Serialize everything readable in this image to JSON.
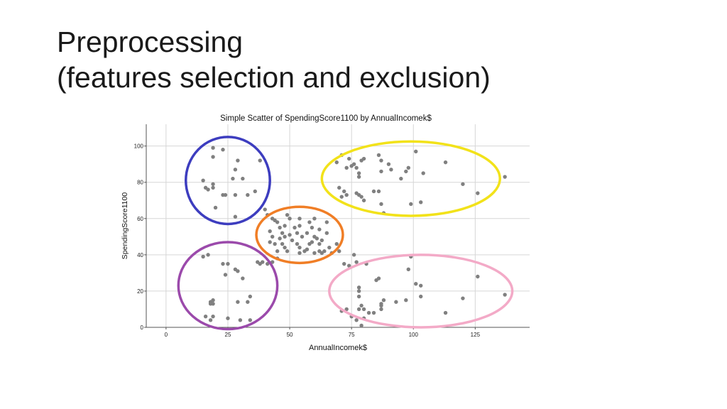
{
  "slide": {
    "title_line1": "Preprocessing",
    "title_line2": "(features selection and exclusion)"
  },
  "chart_data": {
    "type": "scatter",
    "title": "Simple Scatter of SpendingScore1100 by AnnualIncomek$",
    "xlabel": "AnnualIncomek$",
    "ylabel": "SpendingScore1100",
    "xlim": [
      -8,
      147
    ],
    "ylim": [
      0,
      112
    ],
    "xticks": [
      0,
      25,
      50,
      75,
      100,
      125
    ],
    "yticks": [
      0,
      20,
      40,
      60,
      80,
      100
    ],
    "grid": true,
    "point_color": "#808080",
    "series": [
      {
        "points": [
          [
            19,
            99
          ],
          [
            23,
            98
          ],
          [
            19,
            94
          ],
          [
            29,
            92
          ],
          [
            15,
            81
          ],
          [
            19,
            79
          ],
          [
            16,
            77
          ],
          [
            19,
            77
          ],
          [
            17,
            76
          ],
          [
            23,
            73
          ],
          [
            24,
            73
          ],
          [
            28,
            73
          ],
          [
            33,
            73
          ],
          [
            36,
            75
          ],
          [
            20,
            66
          ],
          [
            28,
            87
          ],
          [
            27,
            82
          ],
          [
            31,
            82
          ],
          [
            38,
            92
          ],
          [
            28,
            61
          ],
          [
            15,
            39
          ],
          [
            17,
            40
          ],
          [
            23,
            35
          ],
          [
            25,
            35
          ],
          [
            24,
            29
          ],
          [
            28,
            32
          ],
          [
            29,
            31
          ],
          [
            31,
            27
          ],
          [
            38,
            35
          ],
          [
            37,
            36
          ],
          [
            34,
            17
          ],
          [
            33,
            14
          ],
          [
            29,
            14
          ],
          [
            19,
            15
          ],
          [
            18,
            14
          ],
          [
            19,
            13
          ],
          [
            18,
            13
          ],
          [
            19,
            6
          ],
          [
            16,
            6
          ],
          [
            18,
            4
          ],
          [
            25,
            5
          ],
          [
            30,
            4
          ],
          [
            34,
            4
          ],
          [
            40,
            65
          ],
          [
            41,
            62
          ],
          [
            43,
            60
          ],
          [
            44,
            59
          ],
          [
            45,
            58
          ],
          [
            46,
            55
          ],
          [
            47,
            52
          ],
          [
            48,
            50
          ],
          [
            42,
            53
          ],
          [
            43,
            50
          ],
          [
            42,
            47
          ],
          [
            44,
            46
          ],
          [
            46,
            49
          ],
          [
            47,
            46
          ],
          [
            48,
            44
          ],
          [
            45,
            42
          ],
          [
            49,
            42
          ],
          [
            50,
            51
          ],
          [
            51,
            48
          ],
          [
            52,
            55
          ],
          [
            53,
            52
          ],
          [
            54,
            60
          ],
          [
            54,
            56
          ],
          [
            53,
            46
          ],
          [
            54,
            44
          ],
          [
            54,
            41
          ],
          [
            55,
            50
          ],
          [
            57,
            52
          ],
          [
            58,
            58
          ],
          [
            59,
            55
          ],
          [
            60,
            60
          ],
          [
            60,
            50
          ],
          [
            61,
            49
          ],
          [
            62,
            46
          ],
          [
            62,
            42
          ],
          [
            63,
            41
          ],
          [
            60,
            41
          ],
          [
            63,
            48
          ],
          [
            64,
            42
          ],
          [
            65,
            58
          ],
          [
            65,
            52
          ],
          [
            66,
            44
          ],
          [
            67,
            41
          ],
          [
            69,
            46
          ],
          [
            70,
            42
          ],
          [
            58,
            46
          ],
          [
            57,
            43
          ],
          [
            48,
            56
          ],
          [
            50,
            60
          ],
          [
            49,
            62
          ],
          [
            39,
            36
          ],
          [
            41,
            35
          ],
          [
            43,
            36
          ],
          [
            45,
            38
          ],
          [
            56,
            42
          ],
          [
            59,
            47
          ],
          [
            62,
            54
          ],
          [
            69,
            91
          ],
          [
            71,
            95
          ],
          [
            73,
            88
          ],
          [
            74,
            93
          ],
          [
            75,
            89
          ],
          [
            76,
            90
          ],
          [
            77,
            88
          ],
          [
            78,
            85
          ],
          [
            78,
            83
          ],
          [
            79,
            92
          ],
          [
            80,
            93
          ],
          [
            87,
            92
          ],
          [
            86,
            95
          ],
          [
            87,
            86
          ],
          [
            90,
            90
          ],
          [
            91,
            87
          ],
          [
            95,
            82
          ],
          [
            97,
            86
          ],
          [
            98,
            88
          ],
          [
            101,
            97
          ],
          [
            104,
            85
          ],
          [
            113,
            91
          ],
          [
            120,
            79
          ],
          [
            126,
            74
          ],
          [
            137,
            83
          ],
          [
            72,
            75
          ],
          [
            73,
            73
          ],
          [
            70,
            77
          ],
          [
            71,
            72
          ],
          [
            77,
            74
          ],
          [
            79,
            72
          ],
          [
            80,
            70
          ],
          [
            84,
            75
          ],
          [
            86,
            75
          ],
          [
            87,
            68
          ],
          [
            78,
            73
          ],
          [
            99,
            68
          ],
          [
            103,
            69
          ],
          [
            88,
            63
          ],
          [
            72,
            35
          ],
          [
            74,
            34
          ],
          [
            76,
            40
          ],
          [
            77,
            36
          ],
          [
            78,
            22
          ],
          [
            78,
            20
          ],
          [
            78,
            17
          ],
          [
            79,
            12
          ],
          [
            80,
            10
          ],
          [
            82,
            8
          ],
          [
            80,
            5
          ],
          [
            79,
            1
          ],
          [
            81,
            35
          ],
          [
            71,
            9
          ],
          [
            73,
            10
          ],
          [
            75,
            6
          ],
          [
            77,
            4
          ],
          [
            78,
            10
          ],
          [
            85,
            26
          ],
          [
            86,
            27
          ],
          [
            87,
            13
          ],
          [
            88,
            15
          ],
          [
            87,
            10
          ],
          [
            93,
            14
          ],
          [
            97,
            15
          ],
          [
            98,
            32
          ],
          [
            99,
            39
          ],
          [
            101,
            24
          ],
          [
            103,
            23
          ],
          [
            103,
            17
          ],
          [
            113,
            8
          ],
          [
            120,
            16
          ],
          [
            126,
            28
          ],
          [
            137,
            18
          ],
          [
            84,
            8
          ],
          [
            87,
            12
          ]
        ]
      }
    ],
    "cluster_outline_colors": [
      "#3d3dbf",
      "#9b4aab",
      "#f07e26",
      "#f2e21a",
      "#f3aac7"
    ]
  }
}
